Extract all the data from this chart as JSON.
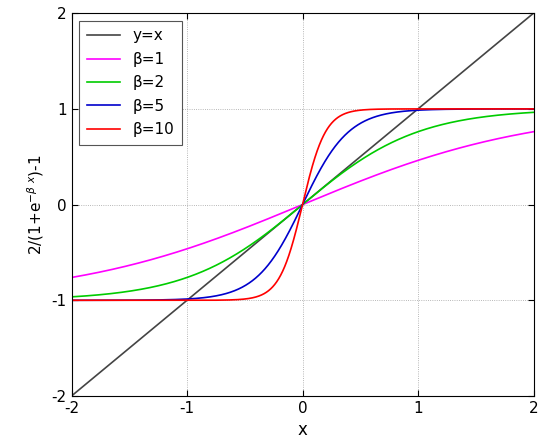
{
  "title": "",
  "xlabel": "x",
  "ylabel": "2/(1+e$^{-\\beta x}$)-1",
  "xlim": [
    -2,
    2
  ],
  "ylim": [
    -2,
    2
  ],
  "xticks": [
    -2,
    -1,
    0,
    1,
    2
  ],
  "yticks": [
    -2,
    -1,
    0,
    1,
    2
  ],
  "betas": [
    1,
    2,
    5,
    10
  ],
  "beta_colors": [
    "#ff00ff",
    "#00cc00",
    "#0000cc",
    "#ff0000"
  ],
  "line_color": "#444444",
  "legend_labels": [
    "y=x",
    "β=1",
    "β=2",
    "β=5",
    "β=10"
  ],
  "grid_color": "#888888",
  "grid_linestyle": ":",
  "background_color": "#ffffff",
  "line_width": 1.2,
  "figsize": [
    5.5,
    4.4
  ],
  "dpi": 100
}
